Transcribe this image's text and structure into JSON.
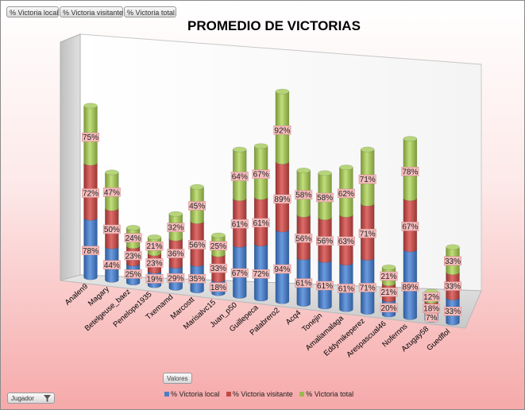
{
  "pivot_fields": [
    {
      "label": "% Victoria local"
    },
    {
      "label": "% Victoria visitante"
    },
    {
      "label": "% Victoria total"
    }
  ],
  "values_button": "Valores",
  "row_field_button": "Jugador",
  "colors": {
    "local": "#4a7fc3",
    "visitante": "#c04a47",
    "total": "#99bb4e"
  },
  "chart_data": {
    "type": "bar",
    "stacked": true,
    "three_d": true,
    "title": "PROMEDIO DE VICTORIAS",
    "legend_position": "bottom",
    "categories": [
      "Analen9",
      "Magary",
      "Betelgeuse_baez",
      "Penelope1935",
      "Txemamd",
      "Marcostt",
      "Marisalvc15",
      "Juan_p50",
      "Guillepeca",
      "Palabrero2",
      "Acq4",
      "Tonejin",
      "Amaliamalaga",
      "Eddymikeperez",
      "Arespascual46",
      "Nofernns",
      "Azugay58",
      "Guedflol"
    ],
    "series": [
      {
        "name": "% Victoria local",
        "values": [
          78,
          44,
          25,
          19,
          29,
          35,
          18,
          67,
          72,
          94,
          61,
          61,
          61,
          71,
          20,
          89,
          7,
          33
        ]
      },
      {
        "name": "% Victoria visitante",
        "values": [
          72,
          50,
          23,
          23,
          36,
          56,
          33,
          61,
          61,
          89,
          56,
          56,
          63,
          71,
          21,
          67,
          18,
          33
        ]
      },
      {
        "name": "% Victoria total",
        "values": [
          75,
          47,
          24,
          21,
          32,
          45,
          25,
          64,
          67,
          92,
          58,
          58,
          62,
          71,
          21,
          78,
          12,
          33
        ]
      }
    ],
    "data_label_suffix": "%"
  }
}
